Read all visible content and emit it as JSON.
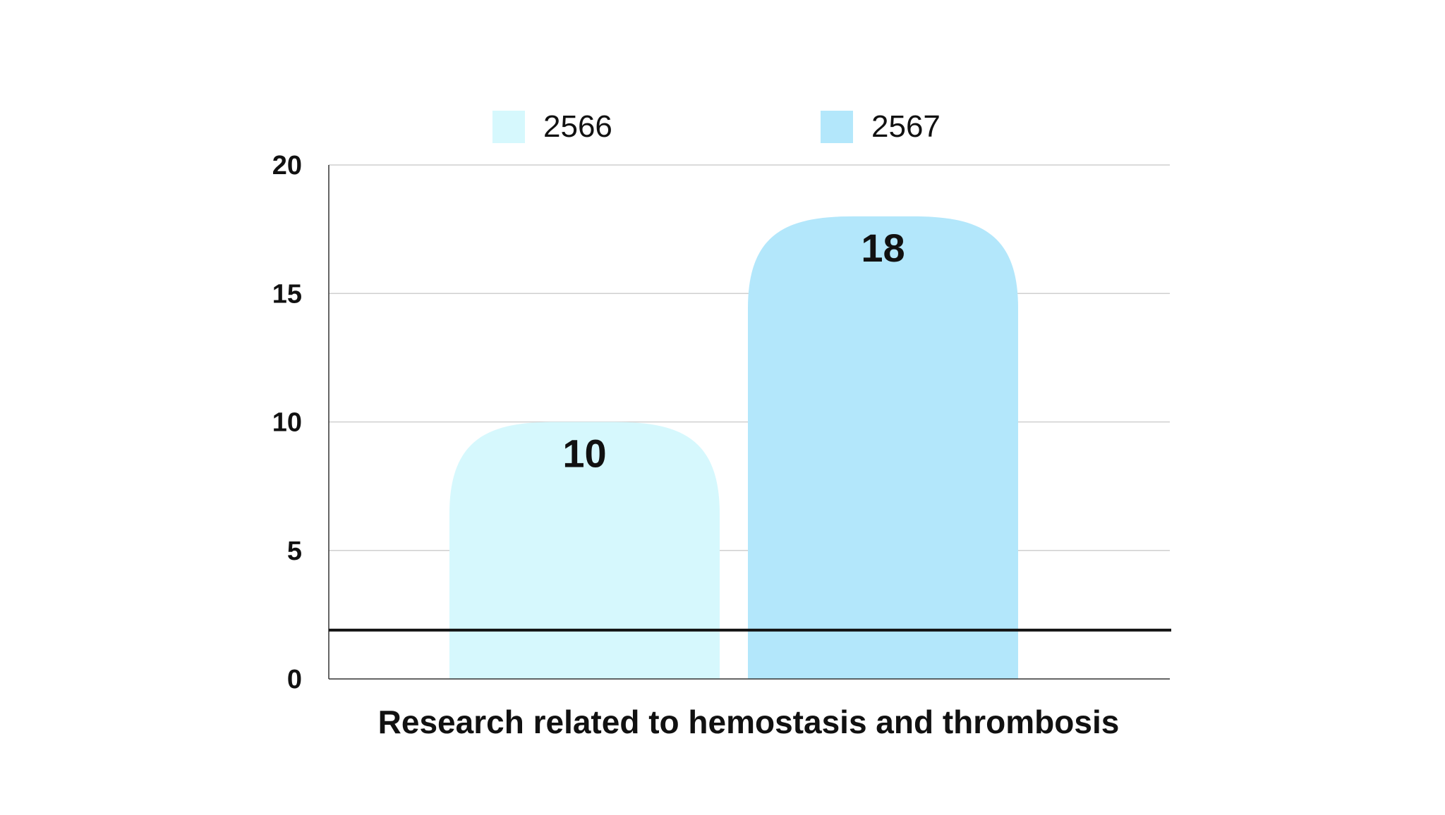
{
  "colors": {
    "series_2566": "#d6f8fd",
    "series_2567": "#b3e7fb",
    "grid": "#cfcfcf",
    "axis": "#333333",
    "reference_line": "#111111",
    "text": "#111111"
  },
  "chart_data": {
    "type": "bar",
    "categories": [
      "Research related to hemostasis and thrombosis"
    ],
    "series": [
      {
        "name": "2566",
        "values": [
          10
        ]
      },
      {
        "name": "2567",
        "values": [
          18
        ]
      }
    ],
    "xlabel": "Research related to hemostasis and thrombosis",
    "ylabel": "",
    "ylim": [
      0,
      20
    ],
    "yticks": [
      "0",
      "5",
      "10",
      "15",
      "20"
    ],
    "data_labels": [
      "10",
      "18"
    ],
    "reference_line": 1.9,
    "grid": true,
    "legend": "top"
  }
}
